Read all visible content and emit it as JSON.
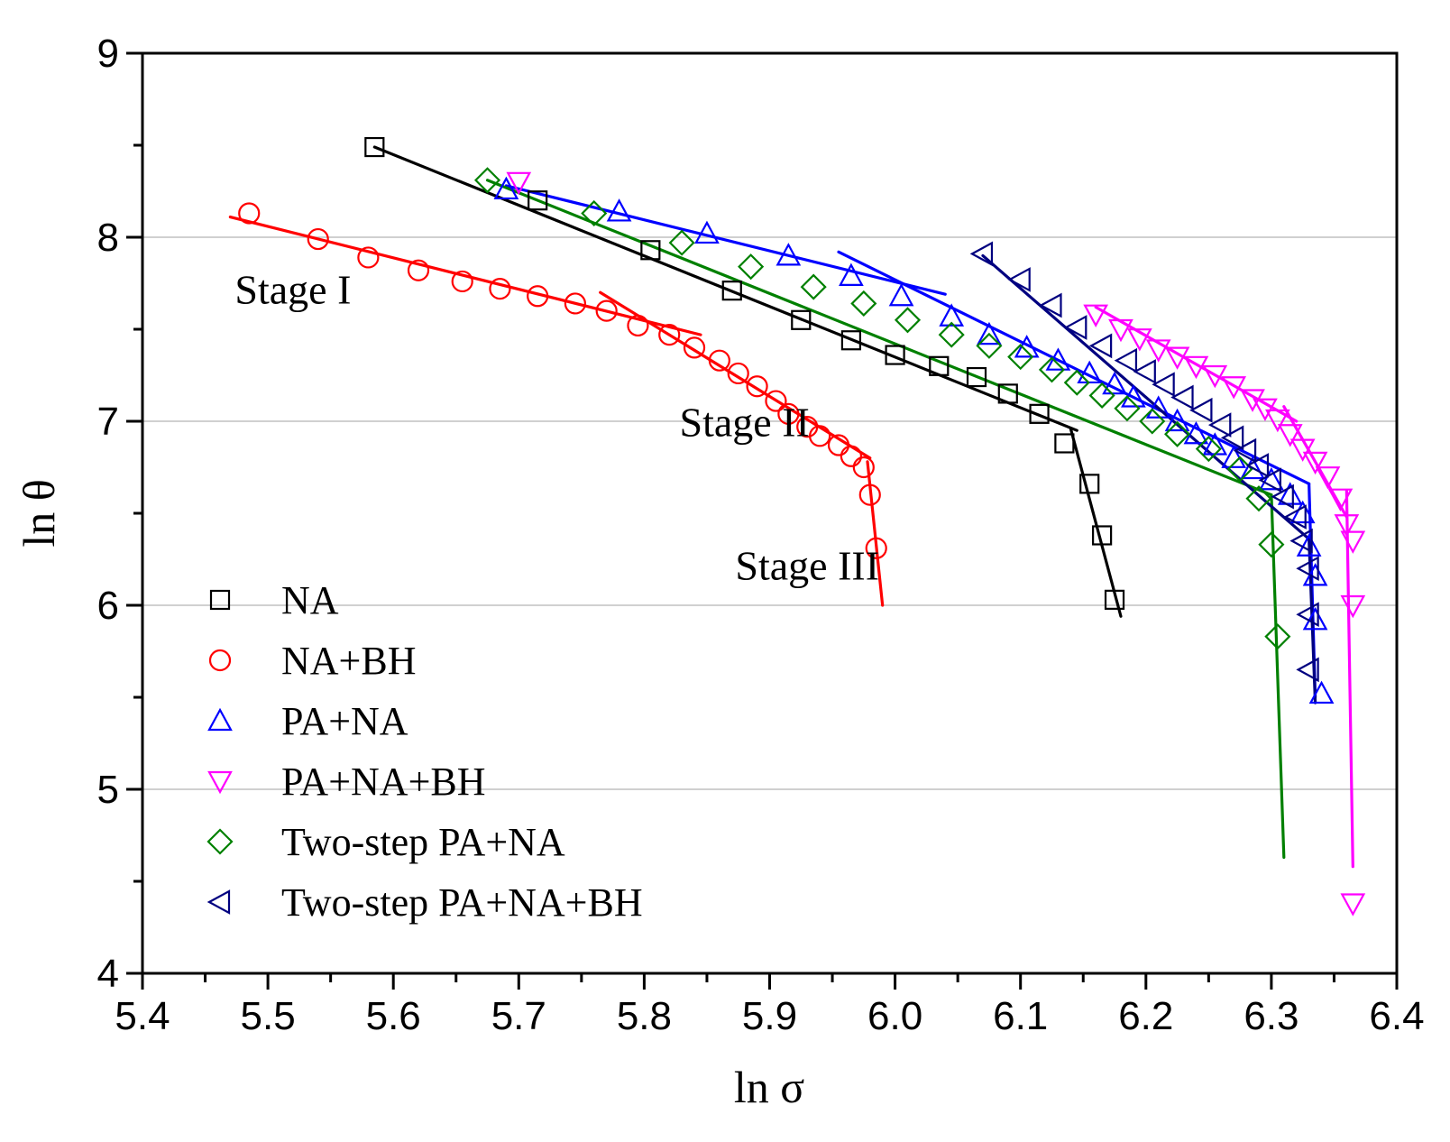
{
  "chart_data": {
    "type": "scatter",
    "title": "",
    "xlabel": "ln σ",
    "ylabel": "ln θ",
    "xlim": [
      5.4,
      6.4
    ],
    "ylim": [
      4,
      9
    ],
    "x_ticks": [
      "5.4",
      "5.5",
      "5.6",
      "5.7",
      "5.8",
      "5.9",
      "6.0",
      "6.1",
      "6.2",
      "6.3",
      "6.4"
    ],
    "y_ticks": [
      "4",
      "5",
      "6",
      "7",
      "8",
      "9"
    ],
    "grid": "horizontal",
    "legend_position": "bottom-left",
    "annotations": [
      {
        "text": "Stage I",
        "x": 5.52,
        "y": 7.64
      },
      {
        "text": "Stage II",
        "x": 5.88,
        "y": 6.92
      },
      {
        "text": "Stage III",
        "x": 5.93,
        "y": 6.14
      }
    ],
    "series": [
      {
        "name": "NA",
        "color": "#000000",
        "marker": "square",
        "points": [
          [
            5.585,
            8.49
          ],
          [
            5.715,
            8.2
          ],
          [
            5.805,
            7.93
          ],
          [
            5.87,
            7.71
          ],
          [
            5.925,
            7.55
          ],
          [
            5.965,
            7.44
          ],
          [
            6.0,
            7.36
          ],
          [
            6.035,
            7.3
          ],
          [
            6.065,
            7.24
          ],
          [
            6.09,
            7.15
          ],
          [
            6.115,
            7.04
          ],
          [
            6.135,
            6.88
          ],
          [
            6.155,
            6.66
          ],
          [
            6.165,
            6.38
          ],
          [
            6.175,
            6.03
          ]
        ],
        "fit_lines": [
          [
            [
              5.585,
              8.49
            ],
            [
              6.145,
              6.95
            ]
          ],
          [
            [
              6.14,
              6.96
            ],
            [
              6.18,
              5.94
            ]
          ]
        ]
      },
      {
        "name": "NA+BH",
        "color": "#ff0000",
        "marker": "circle",
        "points": [
          [
            5.485,
            8.13
          ],
          [
            5.54,
            7.99
          ],
          [
            5.58,
            7.89
          ],
          [
            5.62,
            7.82
          ],
          [
            5.655,
            7.76
          ],
          [
            5.685,
            7.72
          ],
          [
            5.715,
            7.68
          ],
          [
            5.745,
            7.64
          ],
          [
            5.77,
            7.6
          ],
          [
            5.795,
            7.52
          ],
          [
            5.82,
            7.47
          ],
          [
            5.84,
            7.4
          ],
          [
            5.86,
            7.33
          ],
          [
            5.875,
            7.26
          ],
          [
            5.89,
            7.19
          ],
          [
            5.905,
            7.11
          ],
          [
            5.915,
            7.04
          ],
          [
            5.93,
            6.97
          ],
          [
            5.94,
            6.92
          ],
          [
            5.955,
            6.87
          ],
          [
            5.965,
            6.81
          ],
          [
            5.975,
            6.75
          ],
          [
            5.98,
            6.6
          ],
          [
            5.985,
            6.31
          ]
        ],
        "fit_lines": [
          [
            [
              5.47,
              8.11
            ],
            [
              5.845,
              7.47
            ]
          ],
          [
            [
              5.765,
              7.7
            ],
            [
              5.98,
              6.8
            ]
          ],
          [
            [
              5.978,
              6.78
            ],
            [
              5.99,
              6.0
            ]
          ]
        ]
      },
      {
        "name": "PA+NA",
        "color": "#0000ff",
        "marker": "triangle-up",
        "points": [
          [
            5.69,
            8.26
          ],
          [
            5.78,
            8.14
          ],
          [
            5.85,
            8.02
          ],
          [
            5.915,
            7.9
          ],
          [
            5.965,
            7.79
          ],
          [
            6.005,
            7.68
          ],
          [
            6.045,
            7.57
          ],
          [
            6.075,
            7.47
          ],
          [
            6.105,
            7.4
          ],
          [
            6.13,
            7.33
          ],
          [
            6.155,
            7.26
          ],
          [
            6.175,
            7.2
          ],
          [
            6.19,
            7.13
          ],
          [
            6.21,
            7.07
          ],
          [
            6.225,
            7.0
          ],
          [
            6.24,
            6.93
          ],
          [
            6.255,
            6.87
          ],
          [
            6.27,
            6.8
          ],
          [
            6.285,
            6.74
          ],
          [
            6.3,
            6.68
          ],
          [
            6.315,
            6.6
          ],
          [
            6.325,
            6.5
          ],
          [
            6.33,
            6.32
          ],
          [
            6.335,
            6.16
          ],
          [
            6.335,
            5.92
          ],
          [
            6.34,
            5.52
          ]
        ],
        "fit_lines": [
          [
            [
              5.69,
              8.28
            ],
            [
              6.04,
              7.69
            ]
          ],
          [
            [
              5.955,
              7.92
            ],
            [
              6.33,
              6.66
            ]
          ],
          [
            [
              6.33,
              6.66
            ],
            [
              6.335,
              5.5
            ]
          ]
        ]
      },
      {
        "name": "PA+NA+BH",
        "color": "#ff00ff",
        "marker": "triangle-down",
        "points": [
          [
            5.7,
            8.3
          ],
          [
            6.16,
            7.58
          ],
          [
            6.18,
            7.5
          ],
          [
            6.195,
            7.45
          ],
          [
            6.21,
            7.39
          ],
          [
            6.225,
            7.35
          ],
          [
            6.24,
            7.3
          ],
          [
            6.255,
            7.25
          ],
          [
            6.27,
            7.19
          ],
          [
            6.285,
            7.12
          ],
          [
            6.295,
            7.07
          ],
          [
            6.305,
            7.01
          ],
          [
            6.315,
            6.93
          ],
          [
            6.325,
            6.85
          ],
          [
            6.335,
            6.78
          ],
          [
            6.345,
            6.7
          ],
          [
            6.355,
            6.58
          ],
          [
            6.36,
            6.44
          ],
          [
            6.365,
            6.35
          ],
          [
            6.365,
            6.0
          ],
          [
            6.365,
            4.38
          ]
        ],
        "fit_lines": [
          [
            [
              6.16,
              7.62
            ],
            [
              6.32,
              7.0
            ]
          ],
          [
            [
              6.31,
              7.08
            ],
            [
              6.36,
              6.48
            ]
          ],
          [
            [
              6.36,
              6.62
            ],
            [
              6.365,
              4.58
            ]
          ]
        ]
      },
      {
        "name": "Two-step PA+NA",
        "color": "#008000",
        "marker": "diamond",
        "points": [
          [
            5.675,
            8.31
          ],
          [
            5.76,
            8.13
          ],
          [
            5.83,
            7.97
          ],
          [
            5.885,
            7.84
          ],
          [
            5.935,
            7.73
          ],
          [
            5.975,
            7.64
          ],
          [
            6.01,
            7.55
          ],
          [
            6.045,
            7.47
          ],
          [
            6.075,
            7.41
          ],
          [
            6.1,
            7.35
          ],
          [
            6.125,
            7.28
          ],
          [
            6.145,
            7.21
          ],
          [
            6.165,
            7.14
          ],
          [
            6.185,
            7.07
          ],
          [
            6.205,
            7.0
          ],
          [
            6.225,
            6.93
          ],
          [
            6.25,
            6.85
          ],
          [
            6.275,
            6.74
          ],
          [
            6.29,
            6.58
          ],
          [
            6.3,
            6.33
          ],
          [
            6.305,
            5.83
          ]
        ],
        "fit_lines": [
          [
            [
              5.675,
              8.31
            ],
            [
              6.3,
              6.6
            ]
          ],
          [
            [
              6.3,
              6.6
            ],
            [
              6.31,
              4.63
            ]
          ]
        ]
      },
      {
        "name": "Two-step PA+NA+BH",
        "color": "#000080",
        "marker": "triangle-left",
        "points": [
          [
            6.07,
            7.91
          ],
          [
            6.1,
            7.77
          ],
          [
            6.125,
            7.63
          ],
          [
            6.145,
            7.51
          ],
          [
            6.165,
            7.41
          ],
          [
            6.185,
            7.33
          ],
          [
            6.2,
            7.27
          ],
          [
            6.215,
            7.2
          ],
          [
            6.23,
            7.13
          ],
          [
            6.245,
            7.06
          ],
          [
            6.26,
            6.98
          ],
          [
            6.27,
            6.91
          ],
          [
            6.28,
            6.84
          ],
          [
            6.29,
            6.76
          ],
          [
            6.3,
            6.68
          ],
          [
            6.31,
            6.59
          ],
          [
            6.32,
            6.48
          ],
          [
            6.325,
            6.35
          ],
          [
            6.33,
            6.2
          ],
          [
            6.33,
            5.95
          ],
          [
            6.33,
            5.65
          ]
        ],
        "fit_lines": [
          [
            [
              6.07,
              7.9
            ],
            [
              6.33,
              6.36
            ]
          ],
          [
            [
              6.33,
              6.36
            ],
            [
              6.335,
              5.47
            ]
          ]
        ]
      }
    ]
  }
}
